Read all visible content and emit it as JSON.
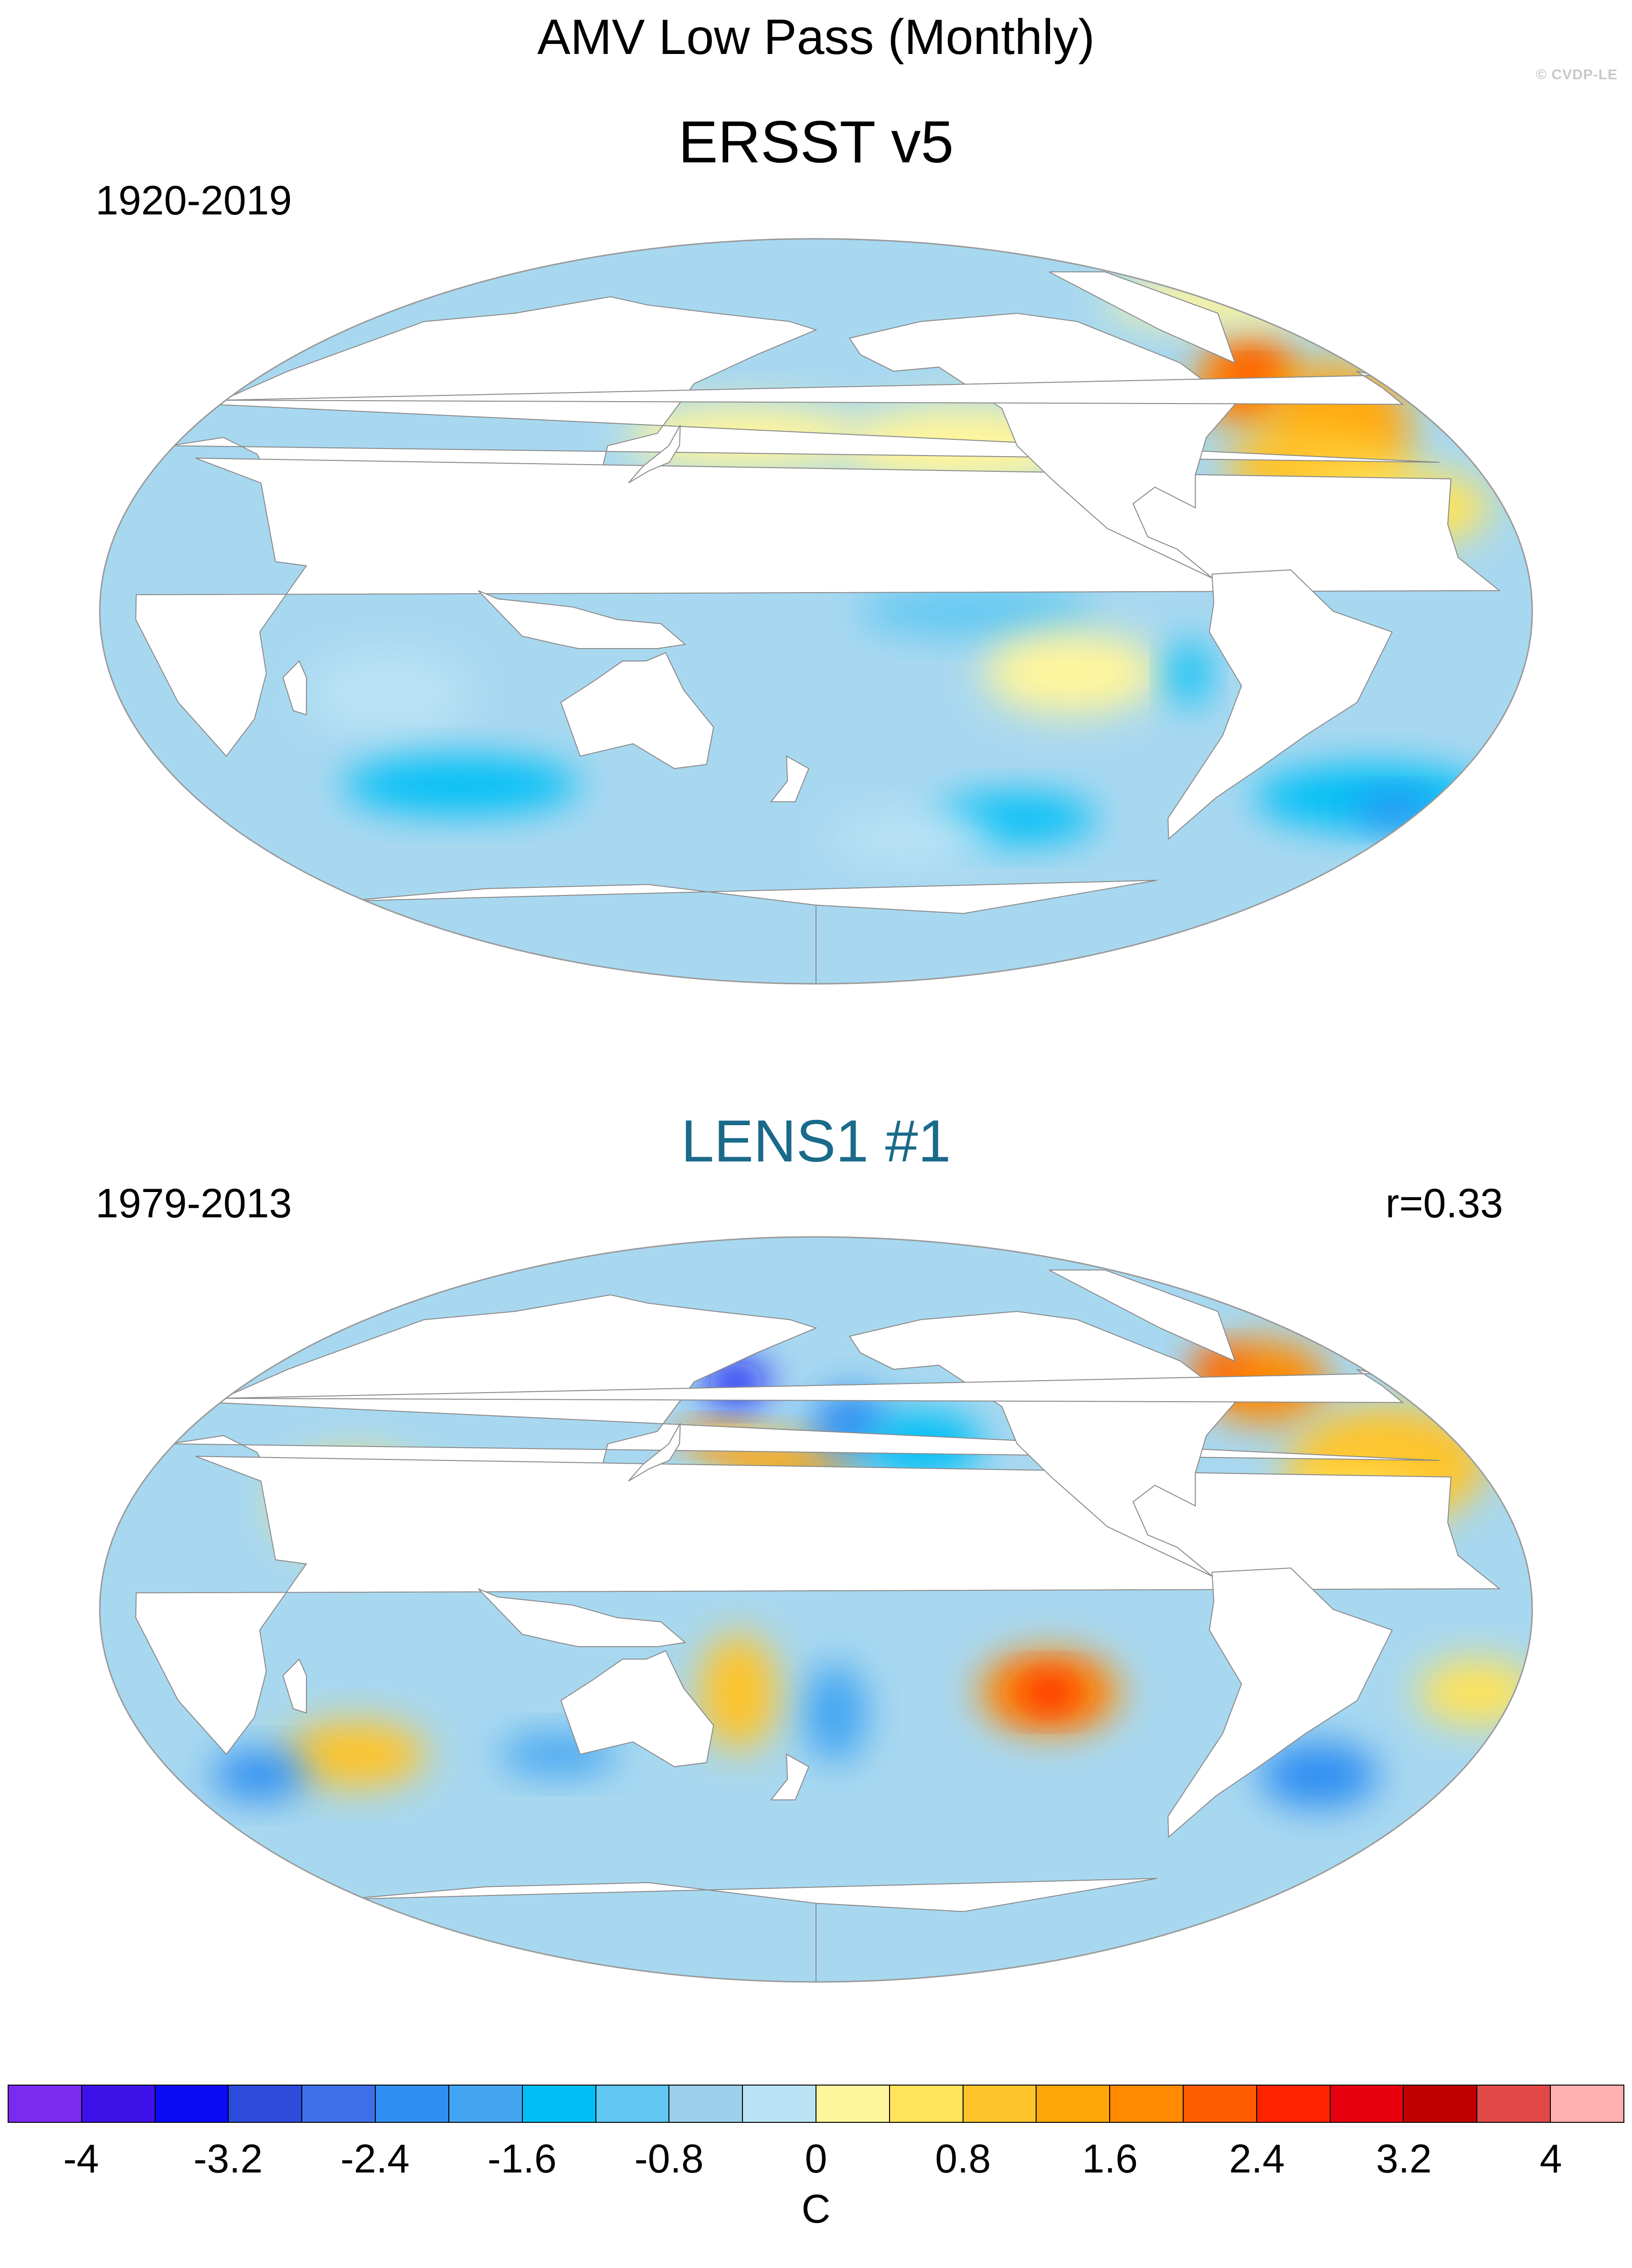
{
  "title": "AMV Low Pass (Monthly)",
  "copyright": "© CVDP-LE",
  "panels": [
    {
      "title": "ERSST v5",
      "title_color": "#000000",
      "period": "1920-2019",
      "corr": "",
      "blobs": [
        {
          "lon": -45,
          "lat": 55,
          "rx": 14,
          "ry": 10,
          "c": 15
        },
        {
          "lon": -40,
          "lat": 58,
          "rx": 7,
          "ry": 7,
          "c": 16
        },
        {
          "lon": -30,
          "lat": 45,
          "rx": 18,
          "ry": 15,
          "c": 14
        },
        {
          "lon": -45,
          "lat": 35,
          "rx": 22,
          "ry": 10,
          "c": 13
        },
        {
          "lon": -30,
          "lat": 25,
          "rx": 25,
          "ry": 10,
          "c": 12
        },
        {
          "lon": -5,
          "lat": 75,
          "rx": 30,
          "ry": 6,
          "c": 11
        },
        {
          "lon": 160,
          "lat": 42,
          "rx": 30,
          "ry": 8,
          "c": 11
        },
        {
          "lon": -140,
          "lat": 40,
          "rx": 30,
          "ry": 10,
          "c": 11
        },
        {
          "lon": -150,
          "lat": 20,
          "rx": 25,
          "ry": 8,
          "c": 10
        },
        {
          "lon": -140,
          "lat": 0,
          "rx": 30,
          "ry": 6,
          "c": 8
        },
        {
          "lon": -115,
          "lat": -15,
          "rx": 22,
          "ry": 10,
          "c": 11
        },
        {
          "lon": 70,
          "lat": -20,
          "rx": 20,
          "ry": 10,
          "c": 10
        },
        {
          "lon": 80,
          "lat": -42,
          "rx": 30,
          "ry": 7,
          "c": 7
        },
        {
          "lon": -85,
          "lat": -15,
          "rx": 5,
          "ry": 8,
          "c": 7
        },
        {
          "lon": -20,
          "lat": -45,
          "rx": 30,
          "ry": 8,
          "c": 7
        },
        {
          "lon": -10,
          "lat": -48,
          "rx": 10,
          "ry": 4,
          "c": 5
        },
        {
          "lon": -120,
          "lat": -50,
          "rx": 20,
          "ry": 6,
          "c": 7
        },
        {
          "lon": -150,
          "lat": -55,
          "rx": 20,
          "ry": 6,
          "c": 10
        }
      ]
    },
    {
      "title": "LENS1 #1",
      "title_color": "#1a6a8a",
      "period": "1979-2013",
      "corr": "r=0.33",
      "blobs": [
        {
          "lon": -40,
          "lat": 55,
          "rx": 16,
          "ry": 10,
          "c": 15
        },
        {
          "lon": -50,
          "lat": 58,
          "rx": 7,
          "ry": 5,
          "c": 16
        },
        {
          "lon": -25,
          "lat": 35,
          "rx": 25,
          "ry": 14,
          "c": 13
        },
        {
          "lon": -40,
          "lat": 25,
          "rx": 20,
          "ry": 8,
          "c": 12
        },
        {
          "lon": 152,
          "lat": 42,
          "rx": 10,
          "ry": 3,
          "c": 15
        },
        {
          "lon": 170,
          "lat": 35,
          "rx": 20,
          "ry": 6,
          "c": 14
        },
        {
          "lon": -170,
          "lat": 45,
          "rx": 10,
          "ry": 8,
          "c": 5
        },
        {
          "lon": -150,
          "lat": 40,
          "rx": 15,
          "ry": 8,
          "c": 7
        },
        {
          "lon": 155,
          "lat": 55,
          "rx": 8,
          "ry": 5,
          "c": 2
        },
        {
          "lon": 60,
          "lat": 25,
          "rx": 20,
          "ry": 12,
          "c": 12
        },
        {
          "lon": -120,
          "lat": -20,
          "rx": 18,
          "ry": 10,
          "c": 15
        },
        {
          "lon": -120,
          "lat": -20,
          "rx": 8,
          "ry": 5,
          "c": 17
        },
        {
          "lon": 55,
          "lat": -35,
          "rx": 18,
          "ry": 8,
          "c": 13
        },
        {
          "lon": 25,
          "lat": -40,
          "rx": 12,
          "ry": 6,
          "c": 5
        },
        {
          "lon": 110,
          "lat": -35,
          "rx": 15,
          "ry": 5,
          "c": 6
        },
        {
          "lon": -175,
          "lat": -25,
          "rx": 8,
          "ry": 12,
          "c": 6
        },
        {
          "lon": -10,
          "lat": -20,
          "rx": 15,
          "ry": 8,
          "c": 12
        },
        {
          "lon": -40,
          "lat": -40,
          "rx": 15,
          "ry": 8,
          "c": 5
        },
        {
          "lon": 160,
          "lat": -20,
          "rx": 10,
          "ry": 14,
          "c": 13
        },
        {
          "lon": -170,
          "lat": 20,
          "rx": 35,
          "ry": 8,
          "c": 7
        }
      ]
    }
  ],
  "colorbar": {
    "colors": [
      "#7b2bf0",
      "#3d12e8",
      "#0b0bf5",
      "#2d4cdc",
      "#3f6fe8",
      "#2f8ef2",
      "#43a5f2",
      "#00bff6",
      "#5fc7f2",
      "#9ad0ec",
      "#b9e3f5",
      "#fff59c",
      "#ffe35a",
      "#ffc42b",
      "#ffa70a",
      "#ff8a00",
      "#ff5c00",
      "#ff2400",
      "#e80010",
      "#c00000",
      "#e04848",
      "#ffb0b0"
    ],
    "tick_labels": [
      "-4",
      "-3.2",
      "-2.4",
      "-1.6",
      "-0.8",
      "0",
      "0.8",
      "1.6",
      "2.4",
      "3.2",
      "4"
    ],
    "units": "C"
  }
}
